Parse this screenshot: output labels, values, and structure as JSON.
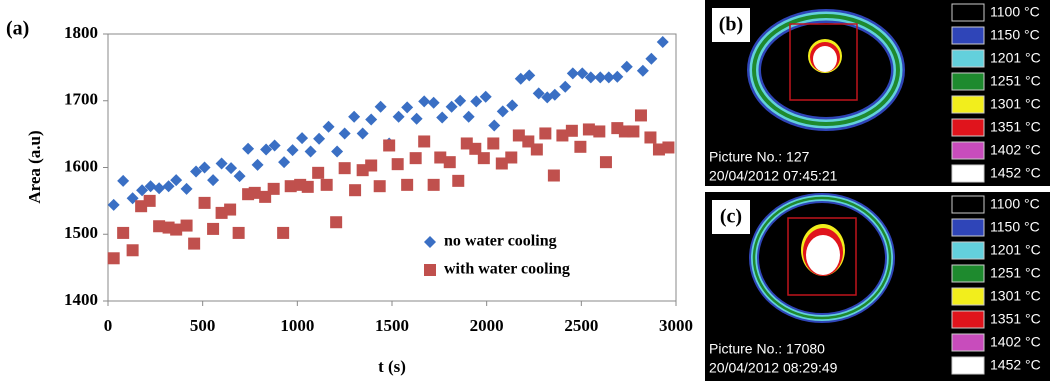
{
  "chart_data": {
    "type": "scatter",
    "panel_label": "(a)",
    "x_label": "t (s)",
    "y_label": "Area (a.u)",
    "xlim": [
      0,
      3000
    ],
    "xticks": [
      0,
      500,
      1000,
      1500,
      2000,
      2500,
      3000
    ],
    "ylim": [
      1400,
      1800
    ],
    "yticks": [
      1400,
      1500,
      1600,
      1700,
      1800
    ],
    "legend": "lower right",
    "series": [
      {
        "name": "no water cooling",
        "color": "#3a6fc4",
        "marker": "diamond",
        "x": [
          30,
          80,
          130,
          180,
          225,
          270,
          320,
          360,
          415,
          465,
          510,
          555,
          600,
          650,
          695,
          740,
          790,
          835,
          880,
          930,
          975,
          1025,
          1070,
          1115,
          1165,
          1210,
          1250,
          1300,
          1345,
          1390,
          1440,
          1485,
          1535,
          1580,
          1630,
          1670,
          1720,
          1765,
          1815,
          1860,
          1905,
          1945,
          1995,
          2040,
          2085,
          2135,
          2180,
          2225,
          2275,
          2320,
          2360,
          2415,
          2455,
          2505,
          2550,
          2600,
          2645,
          2690,
          2740,
          2825,
          2870,
          2930
        ],
        "values": [
          1544,
          1580,
          1554,
          1566,
          1572,
          1569,
          1572,
          1581,
          1568,
          1594,
          1600,
          1581,
          1606,
          1599,
          1587,
          1628,
          1604,
          1627,
          1633,
          1608,
          1626,
          1644,
          1624,
          1643,
          1661,
          1624,
          1651,
          1676,
          1651,
          1672,
          1691,
          1636,
          1676,
          1690,
          1673,
          1699,
          1697,
          1675,
          1691,
          1700,
          1676,
          1699,
          1706,
          1663,
          1684,
          1693,
          1733,
          1738,
          1711,
          1705,
          1709,
          1721,
          1741,
          1741,
          1735,
          1735,
          1735,
          1736,
          1751,
          1745,
          1763,
          1788
        ]
      },
      {
        "name": "with water cooling",
        "color": "#c0504d",
        "marker": "square",
        "x": [
          30,
          80,
          130,
          175,
          220,
          270,
          320,
          360,
          415,
          455,
          510,
          555,
          600,
          645,
          690,
          740,
          775,
          830,
          875,
          925,
          965,
          1015,
          1055,
          1110,
          1155,
          1205,
          1250,
          1305,
          1345,
          1390,
          1435,
          1485,
          1530,
          1580,
          1625,
          1670,
          1720,
          1755,
          1805,
          1850,
          1895,
          1940,
          1985,
          2035,
          2080,
          2130,
          2170,
          2220,
          2265,
          2310,
          2355,
          2400,
          2450,
          2495,
          2540,
          2595,
          2630,
          2690,
          2730,
          2775,
          2815,
          2865,
          2910,
          2960
        ],
        "values": [
          1464,
          1502,
          1476,
          1542,
          1550,
          1512,
          1510,
          1507,
          1513,
          1486,
          1547,
          1508,
          1532,
          1537,
          1502,
          1560,
          1562,
          1556,
          1568,
          1502,
          1572,
          1574,
          1571,
          1592,
          1574,
          1518,
          1599,
          1566,
          1596,
          1603,
          1572,
          1633,
          1605,
          1574,
          1614,
          1639,
          1574,
          1615,
          1608,
          1580,
          1636,
          1628,
          1614,
          1636,
          1606,
          1615,
          1648,
          1639,
          1627,
          1651,
          1588,
          1648,
          1655,
          1631,
          1657,
          1654,
          1608,
          1659,
          1654,
          1654,
          1678,
          1645,
          1627,
          1630
        ]
      }
    ]
  },
  "thermal_legend": [
    {
      "label": "1100 °C",
      "color": "#000000"
    },
    {
      "label": "1150 °C",
      "color": "#2f45b8"
    },
    {
      "label": "1201 °C",
      "color": "#63d0dc"
    },
    {
      "label": "1251 °C",
      "color": "#1e8a2e"
    },
    {
      "label": "1301 °C",
      "color": "#f2ee1c"
    },
    {
      "label": "1351 °C",
      "color": "#e0141c"
    },
    {
      "label": "1402 °C",
      "color": "#c84cbc"
    },
    {
      "label": "1452 °C",
      "color": "#ffffff"
    }
  ],
  "panels": [
    {
      "label": "(b)",
      "picture": "Picture No.: 127",
      "time": "20/04/2012 07:45:21"
    },
    {
      "label": "(c)",
      "picture": "Picture No.: 17080",
      "time": "20/04/2012 08:29:49"
    }
  ]
}
